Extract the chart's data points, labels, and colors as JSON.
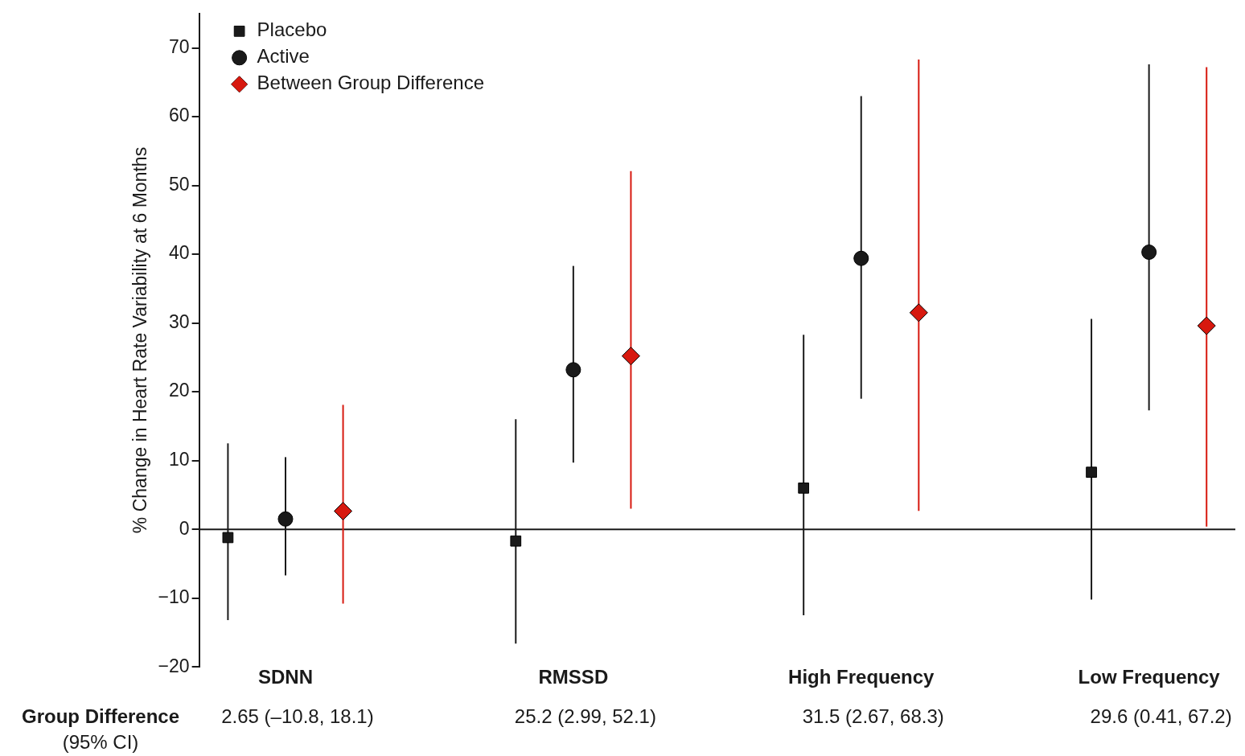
{
  "chart_data": {
    "type": "scatter",
    "ylabel": "% Change in Heart Rate Variability at 6 Months",
    "categories": [
      "SDNN",
      "RMSSD",
      "High Frequency",
      "Low Frequency"
    ],
    "series": [
      {
        "name": "Placebo",
        "color": "#1a1a1a",
        "marker": "square",
        "values": [
          -1.2,
          -1.7,
          6,
          8.3
        ],
        "errors": [
          [
            -13.2,
            12.5
          ],
          [
            -16.6,
            16
          ],
          [
            -12.5,
            28.3
          ],
          [
            -10.2,
            30.6
          ]
        ]
      },
      {
        "name": "Active",
        "color": "#1a1a1a",
        "marker": "circle",
        "values": [
          1.5,
          23.2,
          39.4,
          40.3
        ],
        "errors": [
          [
            -6.7,
            10.5
          ],
          [
            9.7,
            38.3
          ],
          [
            19,
            63
          ],
          [
            17.3,
            67.6
          ]
        ]
      },
      {
        "name": "Between Group Difference",
        "color": "#d7190f",
        "marker": "diamond",
        "values": [
          2.65,
          25.2,
          31.5,
          29.6
        ],
        "errors": [
          [
            -10.8,
            18.1
          ],
          [
            2.99,
            52.1
          ],
          [
            2.67,
            68.3
          ],
          [
            0.41,
            67.2
          ]
        ],
        "value_labels": [
          "2.65 (–10.8, 18.1)",
          "25.2 (2.99, 52.1)",
          "31.5 (2.67, 68.3)",
          "29.6 (0.41, 67.2)"
        ]
      }
    ],
    "ylim": [
      -20,
      75
    ],
    "yticks": [
      -20,
      -10,
      0,
      10,
      20,
      30,
      40,
      50,
      60,
      70
    ],
    "ref_lines": [
      {
        "axis": "y",
        "value": 0,
        "color": "#1a1a1a"
      }
    ],
    "annotations": [
      "Group Difference",
      "(95% CI)"
    ],
    "legend": "top left",
    "grid": false
  }
}
